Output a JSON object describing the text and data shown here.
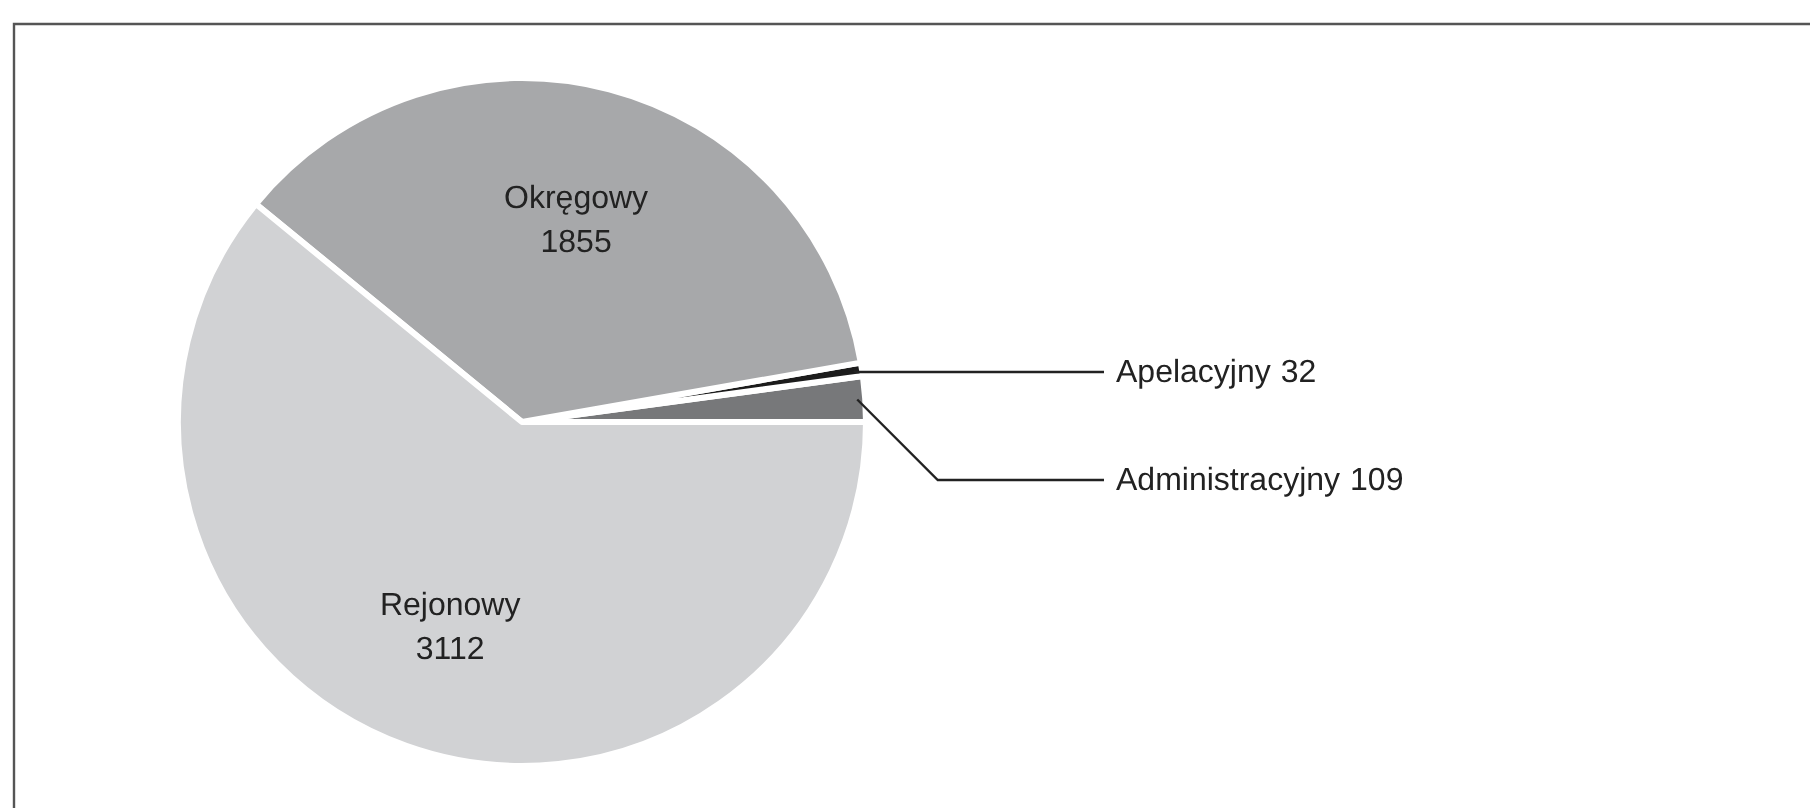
{
  "chart_data": {
    "type": "pie",
    "categories": [
      "Administracyjny",
      "Apelacyjny",
      "Okręgowy",
      "Rejonowy"
    ],
    "values": [
      109,
      32,
      1855,
      3112
    ],
    "colors": [
      "#77787a",
      "#1c1c1c",
      "#a7a8aa",
      "#d1d2d4"
    ],
    "data_labels": true
  }
}
